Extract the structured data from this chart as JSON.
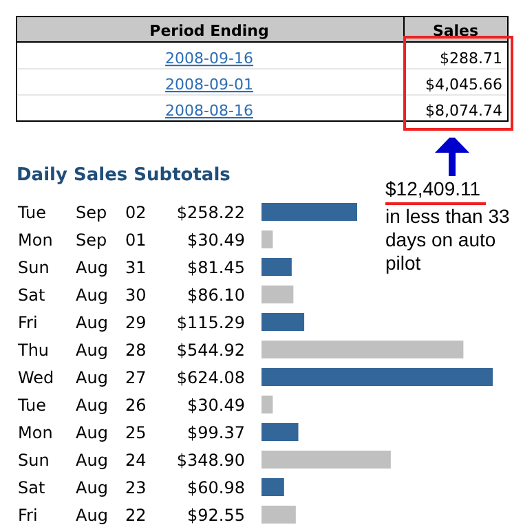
{
  "chart_data": [
    {
      "type": "other",
      "xlabel": "Period Ending",
      "ylabel": "Sales",
      "categories": [
        "2008-09-16",
        "2008-09-01",
        "2008-08-16"
      ],
      "value_labels": [
        "$288.71",
        "$4,045.66",
        "$8,074.74"
      ]
    },
    {
      "type": "bar",
      "orientation": "horizontal",
      "title": "Daily Sales Subtotals",
      "categories": [
        "Tue Sep 02",
        "Mon Sep 01",
        "Sun Aug 31",
        "Sat Aug 30",
        "Fri Aug 29",
        "Thu Aug 28",
        "Wed Aug 27",
        "Tue Aug 26",
        "Mon Aug 25",
        "Sun Aug 24",
        "Sat Aug 23",
        "Fri Aug 22"
      ],
      "values": [
        258.22,
        30.49,
        81.45,
        86.1,
        115.29,
        544.92,
        624.08,
        30.49,
        99.37,
        348.9,
        60.98,
        92.55
      ],
      "value_labels": [
        "$258.22",
        "$30.49",
        "$81.45",
        "$86.10",
        "$115.29",
        "$544.92",
        "$624.08",
        "$30.49",
        "$99.37",
        "$348.90",
        "$60.98",
        "$92.55"
      ],
      "colors": [
        "#336699",
        "#c0c0c0",
        "#336699",
        "#c0c0c0",
        "#336699",
        "#c0c0c0",
        "#336699",
        "#c0c0c0",
        "#336699",
        "#c0c0c0",
        "#336699",
        "#c0c0c0"
      ],
      "annotations": [
        "$12,409.11",
        "in less than 33 days on auto pilot"
      ]
    }
  ]
}
